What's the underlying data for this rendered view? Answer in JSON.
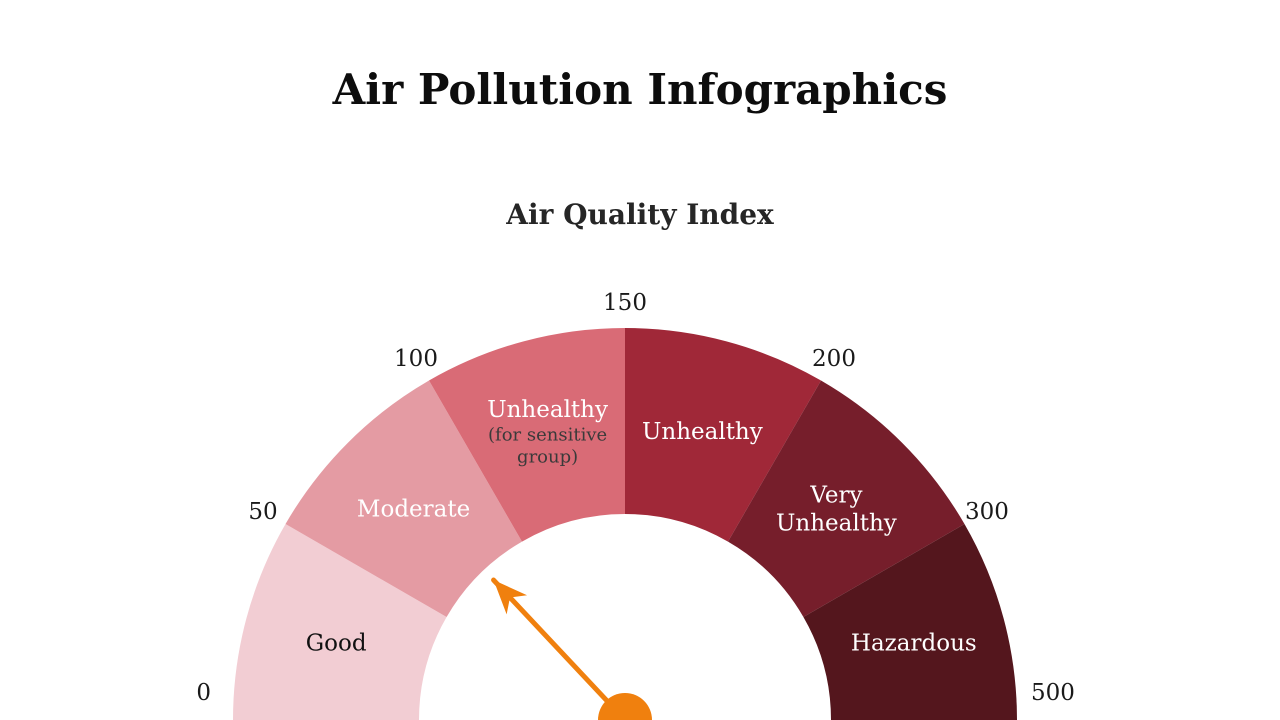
{
  "page": {
    "title": "Air Pollution Infographics"
  },
  "chart_data": {
    "type": "gauge",
    "title": "Air Quality Index",
    "range": [
      0,
      500
    ],
    "segments": [
      {
        "label_lines": [
          "Good"
        ],
        "from": 0,
        "to": 50,
        "color": "#F2CDD3",
        "text_color": "#111111"
      },
      {
        "label_lines": [
          "Moderate"
        ],
        "from": 50,
        "to": 100,
        "color": "#E49BA3",
        "text_color": "#FFFFFF"
      },
      {
        "label_lines": [
          "Unhealthy"
        ],
        "sublabel_lines": [
          "(for sensitive",
          "group)"
        ],
        "from": 100,
        "to": 150,
        "color": "#D96B76",
        "text_color": "#FFFFFF",
        "sub_text_color": "#3A3A3A"
      },
      {
        "label_lines": [
          "Unhealthy"
        ],
        "from": 150,
        "to": 200,
        "color": "#A02838",
        "text_color": "#FFFFFF"
      },
      {
        "label_lines": [
          "Very",
          "Unhealthy"
        ],
        "from": 200,
        "to": 300,
        "color": "#761E2B",
        "text_color": "#FFFFFF"
      },
      {
        "label_lines": [
          "Hazardous"
        ],
        "from": 300,
        "to": 500,
        "color": "#54161D",
        "text_color": "#FFFFFF"
      }
    ],
    "ticks": [
      "0",
      "50",
      "100",
      "150",
      "200",
      "300",
      "500"
    ],
    "needle": {
      "segment_position": 0.26,
      "color": "#F0800E"
    }
  }
}
